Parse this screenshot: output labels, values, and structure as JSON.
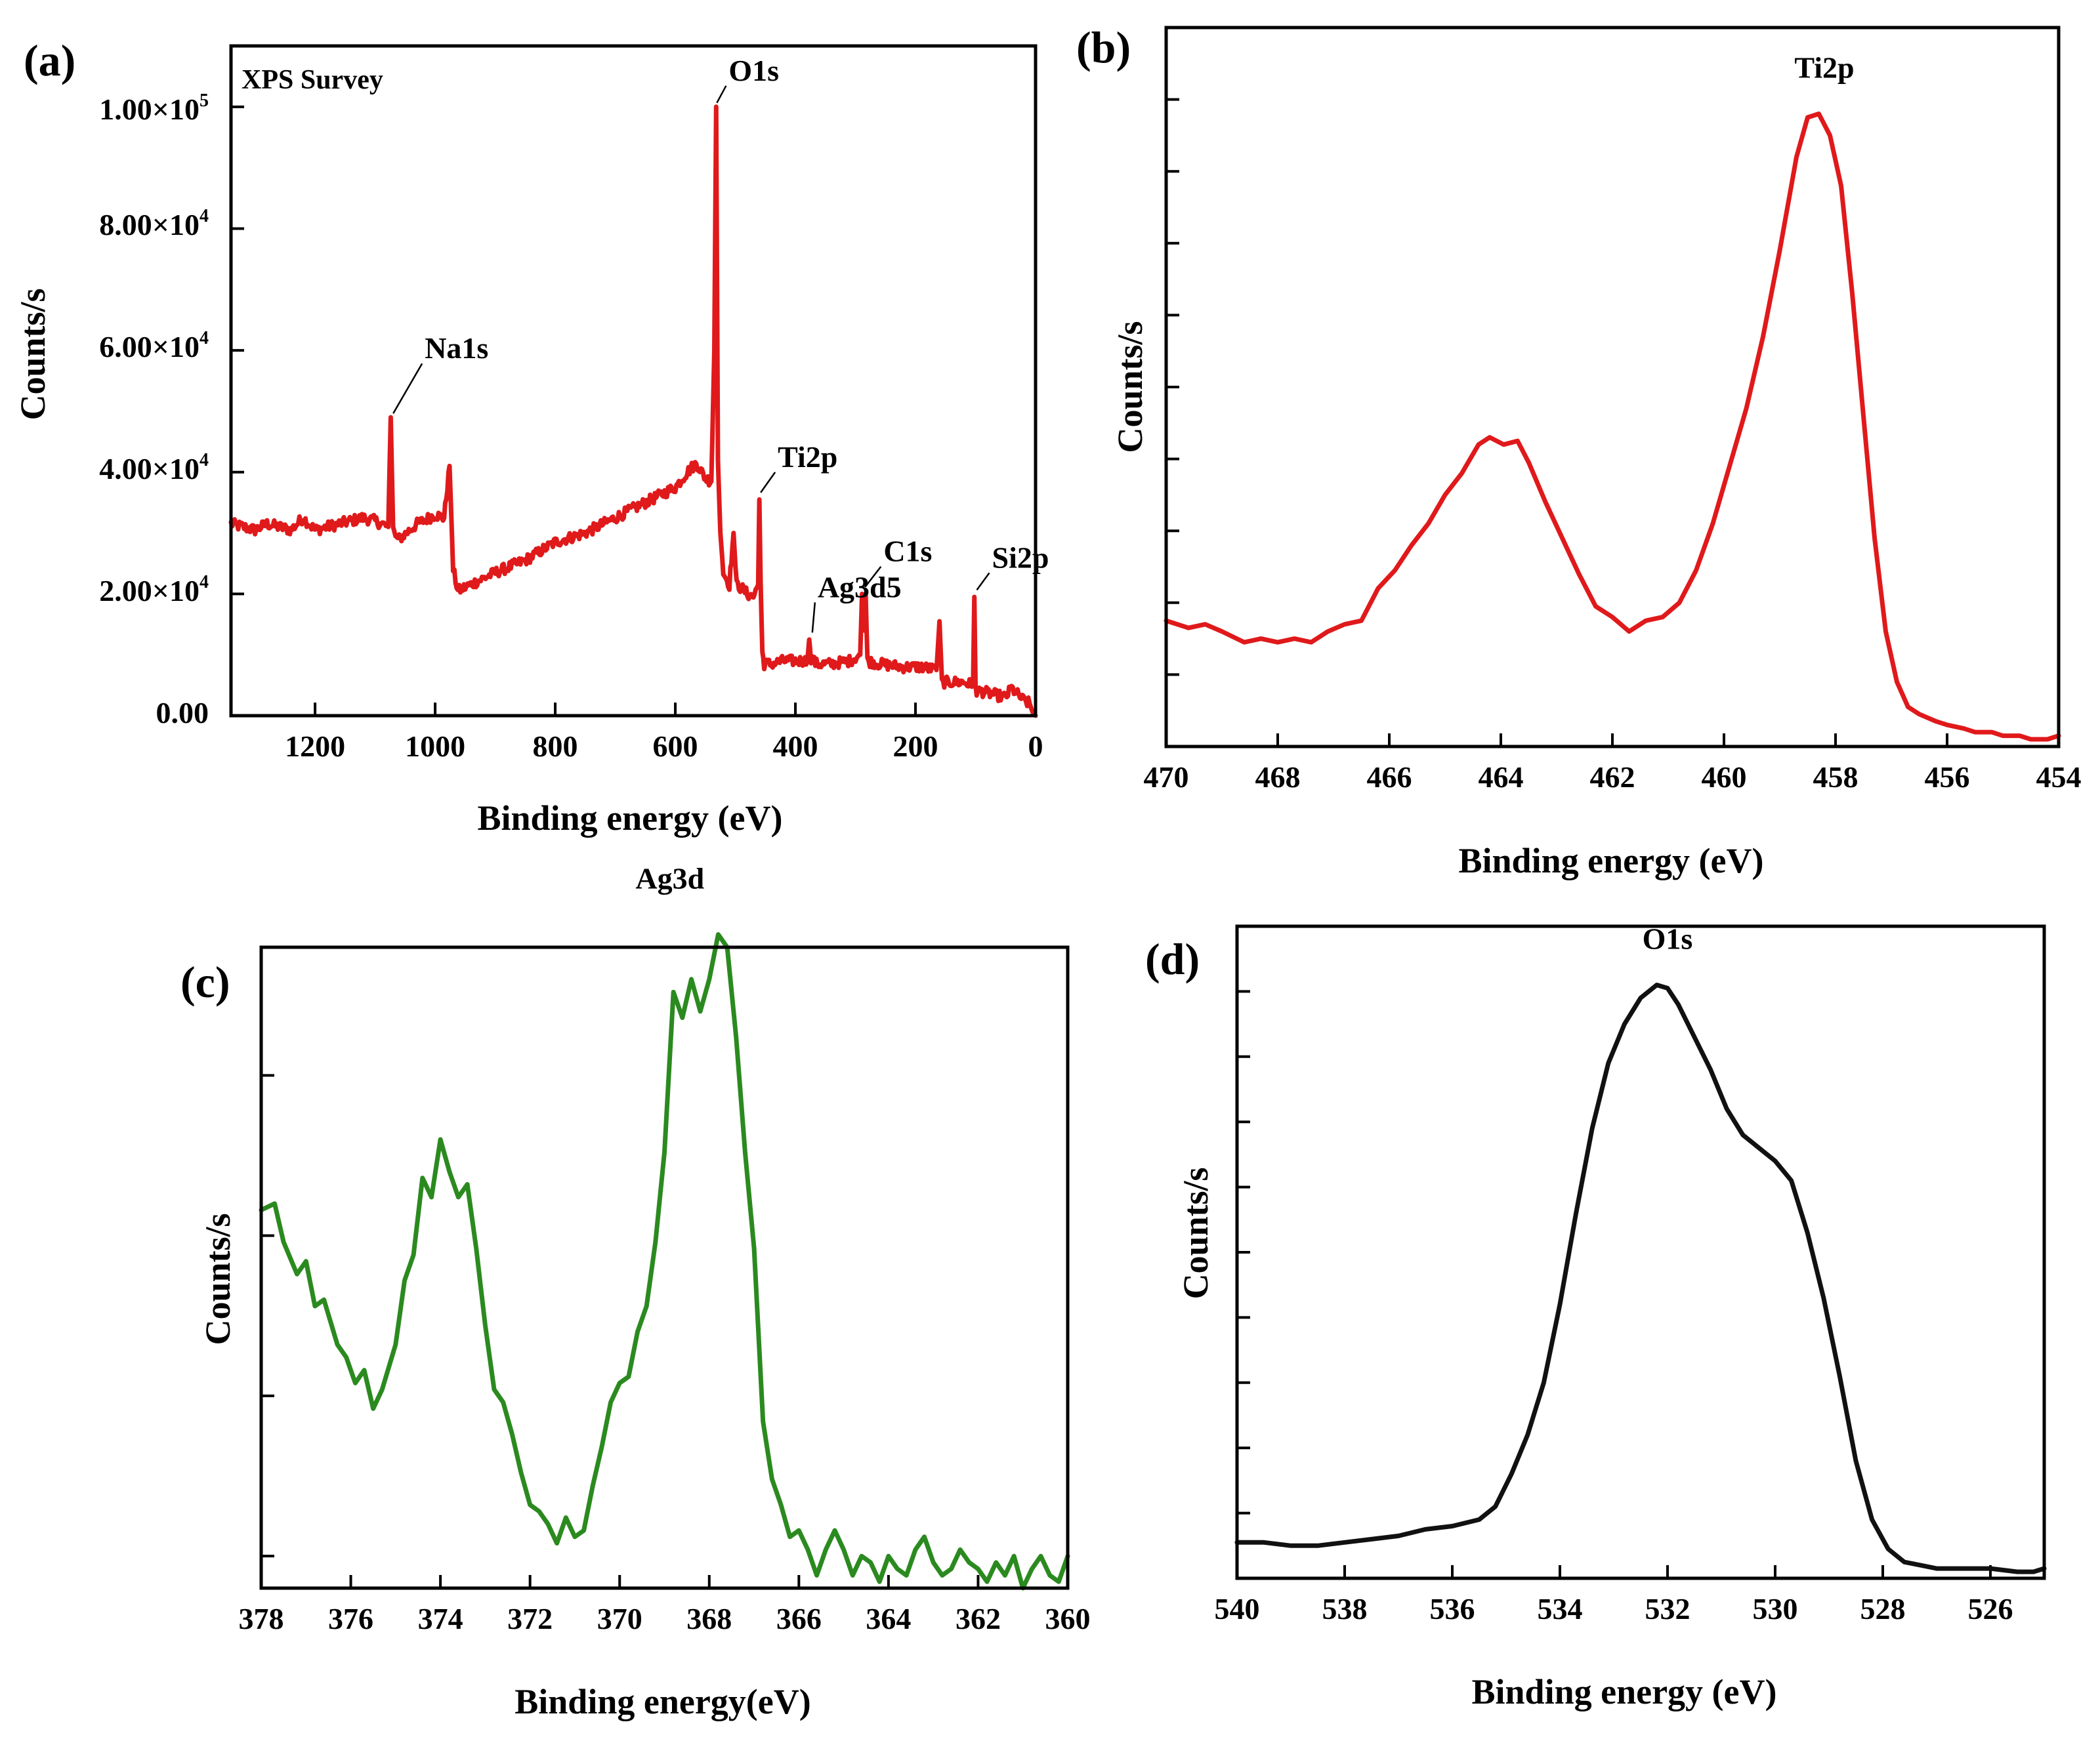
{
  "chart_data": [
    {
      "id": "a",
      "type": "line",
      "panel_label": "(a)",
      "title": "XPS Survey",
      "xlabel": "Binding energy (eV)",
      "ylabel": "Counts/s",
      "xlim": [
        1340,
        0
      ],
      "ylim": [
        0,
        110000
      ],
      "xticks": [
        1200,
        1000,
        800,
        600,
        400,
        200,
        0
      ],
      "xtick_labels": [
        "1200",
        "1000",
        "800",
        "600",
        "400",
        "200",
        "0"
      ],
      "yticks": [
        0,
        20000,
        40000,
        60000,
        80000,
        100000
      ],
      "ytick_mantissa": [
        "0.00",
        "2.00×10",
        "4.00×10",
        "6.00×10",
        "8.00×10",
        "1.00×10"
      ],
      "ytick_exponent": [
        "",
        "4",
        "4",
        "4",
        "4",
        "5"
      ],
      "color": "#e0191b",
      "noise": 900,
      "x": [
        1340,
        1300,
        1280,
        1240,
        1220,
        1200,
        1160,
        1120,
        1100,
        1078,
        1074,
        1070,
        1066,
        1060,
        1030,
        1000,
        985,
        976,
        970,
        962,
        952,
        900,
        850,
        800,
        750,
        700,
        650,
        600,
        580,
        565,
        550,
        540,
        535,
        532,
        529,
        525,
        520,
        510,
        503,
        498,
        490,
        480,
        470,
        462,
        460,
        458,
        455,
        452,
        440,
        420,
        400,
        380,
        377,
        374,
        365,
        340,
        310,
        292,
        289,
        286,
        283,
        280,
        260,
        220,
        190,
        165,
        160,
        156,
        152,
        140,
        120,
        104,
        102,
        100,
        98,
        90,
        70,
        50,
        40,
        20,
        10,
        5,
        0
      ],
      "y": [
        31500,
        30500,
        31500,
        30500,
        32500,
        30500,
        31500,
        32500,
        32000,
        31000,
        49000,
        31000,
        29500,
        29000,
        31500,
        33000,
        32500,
        41000,
        24000,
        20500,
        21000,
        23500,
        25500,
        28500,
        30000,
        32500,
        35000,
        37500,
        40000,
        41500,
        39000,
        38500,
        60000,
        100000,
        42000,
        30000,
        23500,
        21500,
        30000,
        21500,
        21000,
        20000,
        19500,
        21500,
        35500,
        22000,
        10500,
        8500,
        8500,
        9000,
        9000,
        9000,
        12500,
        9500,
        8500,
        8500,
        9000,
        10000,
        20000,
        14000,
        20000,
        9000,
        8500,
        8000,
        8000,
        7500,
        15500,
        6000,
        5500,
        5500,
        5500,
        5000,
        19500,
        5000,
        4000,
        4000,
        3500,
        3000,
        4500,
        2500,
        2000,
        600,
        0
      ],
      "peak_labels": [
        {
          "text": "Na1s",
          "x": 1072,
          "y": 49000
        },
        {
          "text": "O1s",
          "x": 533,
          "y": 100000
        },
        {
          "text": "Ti2p",
          "x": 460,
          "y": 36000
        },
        {
          "text": "Ag3d5",
          "x": 374,
          "y": 13000
        },
        {
          "text": "C1s",
          "x": 286,
          "y": 20500
        },
        {
          "text": "Si2p",
          "x": 100,
          "y": 20000
        }
      ]
    },
    {
      "id": "b",
      "type": "line",
      "panel_label": "(b)",
      "title": "Ti2p",
      "xlabel": "Binding energy (eV)",
      "ylabel": "Counts/s",
      "xlim": [
        470,
        454
      ],
      "ylim": [
        0,
        10
      ],
      "xticks": [
        470,
        468,
        466,
        464,
        462,
        460,
        458,
        456,
        454
      ],
      "xtick_labels": [
        "470",
        "468",
        "466",
        "464",
        "462",
        "460",
        "458",
        "456",
        "454"
      ],
      "yticks": [
        1,
        2,
        3,
        4,
        5,
        6,
        7,
        8,
        9
      ],
      "color": "#e0191b",
      "noise": 0,
      "x": [
        470,
        469.6,
        469.3,
        469,
        468.6,
        468.3,
        468,
        467.7,
        467.4,
        467.1,
        466.8,
        466.5,
        466.2,
        465.9,
        465.6,
        465.3,
        465,
        464.7,
        464.4,
        464.2,
        463.95,
        463.7,
        463.5,
        463.2,
        462.9,
        462.6,
        462.3,
        462,
        461.7,
        461.4,
        461.1,
        460.8,
        460.5,
        460.2,
        459.9,
        459.6,
        459.3,
        459,
        458.7,
        458.5,
        458.3,
        458.1,
        457.9,
        457.7,
        457.5,
        457.3,
        457.1,
        456.9,
        456.7,
        456.5,
        456.2,
        456,
        455.7,
        455.5,
        455.2,
        455,
        454.7,
        454.5,
        454.2,
        454
      ],
      "y": [
        1.75,
        1.65,
        1.7,
        1.6,
        1.45,
        1.5,
        1.45,
        1.5,
        1.45,
        1.6,
        1.7,
        1.75,
        2.2,
        2.45,
        2.8,
        3.1,
        3.5,
        3.8,
        4.2,
        4.3,
        4.2,
        4.25,
        3.95,
        3.4,
        2.9,
        2.4,
        1.95,
        1.8,
        1.6,
        1.75,
        1.8,
        2.0,
        2.45,
        3.1,
        3.9,
        4.7,
        5.7,
        6.9,
        8.2,
        8.75,
        8.8,
        8.5,
        7.8,
        6.3,
        4.6,
        2.9,
        1.6,
        0.9,
        0.55,
        0.45,
        0.35,
        0.3,
        0.25,
        0.2,
        0.2,
        0.15,
        0.15,
        0.1,
        0.1,
        0.15
      ],
      "peak_labels": [
        {
          "text": "Ti2p",
          "x": 458.2,
          "y": 8.8
        }
      ]
    },
    {
      "id": "c",
      "type": "line",
      "panel_label": "(c)",
      "title": "Ag3d",
      "xlabel": "Binding energy(eV)",
      "ylabel": "Counts/s",
      "xlim": [
        378,
        360
      ],
      "ylim": [
        0,
        10
      ],
      "xticks": [
        378,
        376,
        374,
        372,
        370,
        368,
        366,
        364,
        362,
        360
      ],
      "xtick_labels": [
        "378",
        "376",
        "374",
        "372",
        "370",
        "368",
        "366",
        "364",
        "362",
        "360"
      ],
      "yticks": [
        0.5,
        3.0,
        5.5,
        8.0
      ],
      "color": "#2b8a1f",
      "noise": 0,
      "x": [
        378,
        377.7,
        377.5,
        377.2,
        377,
        376.8,
        376.6,
        376.3,
        376.1,
        375.9,
        375.7,
        375.5,
        375.3,
        375,
        374.8,
        374.6,
        374.4,
        374.2,
        374,
        373.8,
        373.6,
        373.4,
        373.2,
        373,
        372.8,
        372.6,
        372.4,
        372.2,
        372,
        371.8,
        371.6,
        371.4,
        371.2,
        371,
        370.8,
        370.6,
        370.4,
        370.2,
        370,
        369.8,
        369.6,
        369.4,
        369.2,
        369,
        368.8,
        368.6,
        368.4,
        368.2,
        368,
        367.8,
        367.6,
        367.4,
        367.2,
        367,
        366.8,
        366.6,
        366.4,
        366.2,
        366,
        365.8,
        365.6,
        365.4,
        365.2,
        365,
        364.8,
        364.6,
        364.4,
        364.2,
        364,
        363.8,
        363.6,
        363.4,
        363.2,
        363,
        362.8,
        362.6,
        362.4,
        362.2,
        362,
        361.8,
        361.6,
        361.4,
        361.2,
        361,
        360.8,
        360.6,
        360.4,
        360.2,
        360
      ],
      "y": [
        5.9,
        6.0,
        5.4,
        4.9,
        5.1,
        4.4,
        4.5,
        3.8,
        3.6,
        3.2,
        3.4,
        2.8,
        3.1,
        3.8,
        4.8,
        5.2,
        6.4,
        6.1,
        7.0,
        6.5,
        6.1,
        6.3,
        5.3,
        4.1,
        3.1,
        2.9,
        2.4,
        1.8,
        1.3,
        1.2,
        1.0,
        0.7,
        1.1,
        0.8,
        0.9,
        1.6,
        2.2,
        2.9,
        3.2,
        3.3,
        4.0,
        4.4,
        5.4,
        6.8,
        9.3,
        8.9,
        9.5,
        9.0,
        9.5,
        10.2,
        10.0,
        8.6,
        6.8,
        5.3,
        2.6,
        1.7,
        1.3,
        0.8,
        0.9,
        0.6,
        0.2,
        0.6,
        0.9,
        0.6,
        0.2,
        0.5,
        0.4,
        0.1,
        0.5,
        0.3,
        0.2,
        0.6,
        0.8,
        0.4,
        0.2,
        0.3,
        0.6,
        0.4,
        0.3,
        0.1,
        0.4,
        0.2,
        0.5,
        0.0,
        0.3,
        0.5,
        0.2,
        0.1,
        0.5
      ],
      "peak_labels": [
        {
          "text": "Ag3d",
          "x": 368,
          "y": 10.2
        }
      ]
    },
    {
      "id": "d",
      "type": "line",
      "panel_label": "(d)",
      "title": "O1s",
      "xlabel": "Binding energy (eV)",
      "ylabel": "Counts/s",
      "xlim": [
        540,
        525
      ],
      "ylim": [
        0,
        10
      ],
      "xticks": [
        540,
        538,
        536,
        534,
        532,
        530,
        528,
        526
      ],
      "xtick_labels": [
        "540",
        "538",
        "536",
        "534",
        "532",
        "530",
        "528",
        "526"
      ],
      "yticks": [
        1,
        2,
        3,
        4,
        5,
        6,
        7,
        8,
        9
      ],
      "color": "#111111",
      "noise": 0,
      "x": [
        540,
        539.5,
        539,
        538.5,
        538,
        537.5,
        537,
        536.5,
        536,
        535.5,
        535.2,
        534.9,
        534.6,
        534.3,
        534,
        533.7,
        533.4,
        533.1,
        532.8,
        532.5,
        532.2,
        532,
        531.8,
        531.5,
        531.2,
        530.9,
        530.6,
        530.3,
        530,
        529.7,
        529.4,
        529.1,
        528.8,
        528.5,
        528.2,
        527.9,
        527.6,
        527.3,
        527,
        526.5,
        526,
        525.5,
        525.2,
        525
      ],
      "y": [
        0.55,
        0.55,
        0.5,
        0.5,
        0.55,
        0.6,
        0.65,
        0.75,
        0.8,
        0.9,
        1.1,
        1.6,
        2.2,
        3.0,
        4.2,
        5.6,
        6.9,
        7.9,
        8.5,
        8.9,
        9.1,
        9.05,
        8.8,
        8.3,
        7.8,
        7.2,
        6.8,
        6.6,
        6.4,
        6.1,
        5.3,
        4.3,
        3.1,
        1.8,
        0.9,
        0.45,
        0.25,
        0.2,
        0.15,
        0.15,
        0.15,
        0.1,
        0.1,
        0.15
      ],
      "peak_labels": [
        {
          "text": "O1s",
          "x": 532,
          "y": 9.1
        }
      ]
    }
  ]
}
